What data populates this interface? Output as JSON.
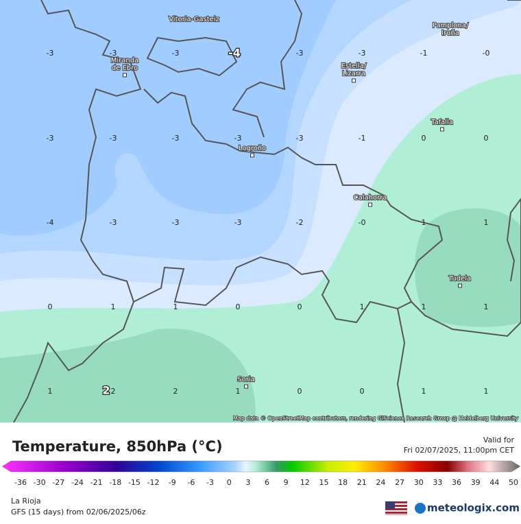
{
  "header": {
    "title": "Temperature, 850hPa (°C)",
    "valid_label": "Valid for",
    "valid_time": "Fri 02/07/2025, 11:00pm CET"
  },
  "map": {
    "attribution": "Map data © OpenStreetMap contributors, rendering GIScience Research Group @ Heidelberg University",
    "cities": [
      {
        "lines": [
          "Vitoria-Gasteiz"
        ]
      },
      {
        "lines": [
          "Pamplona/",
          "Iruña"
        ]
      },
      {
        "lines": [
          "Miranda",
          "de Ebro"
        ]
      },
      {
        "lines": [
          "Estella/",
          "Lizarra"
        ]
      },
      {
        "lines": [
          "Tafalla"
        ]
      },
      {
        "lines": [
          "Logroño"
        ]
      },
      {
        "lines": [
          "Calahorra"
        ]
      },
      {
        "lines": [
          "Tudela"
        ]
      },
      {
        "lines": [
          "Soria"
        ]
      }
    ],
    "grid": [
      [
        "-3",
        "-3",
        "-3",
        "-4",
        "-3",
        "-3",
        "-1",
        "-0"
      ],
      [
        "-3",
        "-3",
        "-3",
        "-3",
        "-3",
        "-1",
        "0",
        "0"
      ],
      [
        "-4",
        "-3",
        "-3",
        "-3",
        "-2",
        "-0",
        "1",
        "1"
      ],
      [
        "0",
        "1",
        "1",
        "0",
        "0",
        "1",
        "1",
        "1"
      ],
      [
        "1",
        "2",
        "2",
        "1",
        "0",
        "0",
        "1",
        "1"
      ]
    ],
    "extrema": [
      "-4",
      "2"
    ]
  },
  "legend": {
    "ticks": [
      "-36",
      "-30",
      "-27",
      "-24",
      "-21",
      "-18",
      "-15",
      "-12",
      "-9",
      "-6",
      "-3",
      "0",
      "3",
      "6",
      "9",
      "12",
      "15",
      "18",
      "21",
      "24",
      "27",
      "30",
      "33",
      "36",
      "39",
      "44",
      "50"
    ]
  },
  "footer": {
    "region": "La Rioja",
    "model": "GFS (15 days) from  02/06/2025/06z",
    "brand": "meteologix.com"
  }
}
